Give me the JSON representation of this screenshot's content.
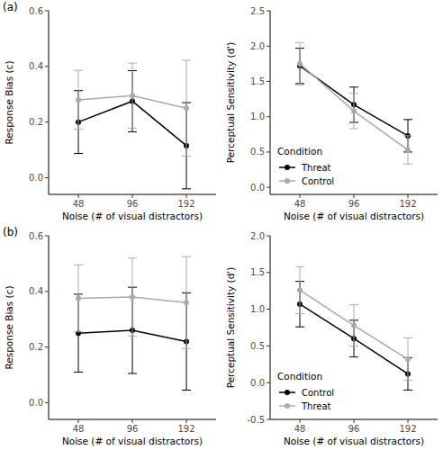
{
  "chart_data": [
    {
      "type": "line",
      "title": "(a)",
      "x_label": "Noise (# of visual distractors)",
      "y_label": "Response Bias (c)",
      "categories": [
        "48",
        "96",
        "192"
      ],
      "ylim": [
        -0.06,
        0.6
      ],
      "yticks": [
        {
          "value": 0,
          "label": "0.0"
        },
        0.2,
        0.4,
        0.6
      ],
      "series": [
        {
          "color": "#000000",
          "marker": "circle",
          "values": [
            0.2,
            0.275,
            0.115
          ],
          "errors": [
            0.113,
            0.11,
            0.155
          ]
        },
        {
          "color": "#aaaaaa",
          "marker": "circle",
          "values": [
            0.28,
            0.295,
            0.25
          ],
          "errors": [
            0.106,
            0.117,
            0.172
          ]
        }
      ]
    },
    {
      "type": "line",
      "x_label": "Noise (# of visual distractors)",
      "y_label": "Perceptual Sensitivity (d')",
      "categories": [
        "48",
        "96",
        "192"
      ],
      "ylim": [
        -0.1,
        2.5
      ],
      "yticks": [
        {
          "value": 0,
          "label": "0.0"
        },
        0.5,
        {
          "value": 1,
          "label": "1.0"
        },
        1.5,
        {
          "value": 2,
          "label": "2.0"
        },
        2.5
      ],
      "legend": "lower left",
      "legend_title": "Condition",
      "series": [
        {
          "name": "Threat",
          "color": "#000000",
          "marker": "circle",
          "values": [
            1.72,
            1.17,
            0.73
          ],
          "errors": [
            0.25,
            0.25,
            0.23
          ]
        },
        {
          "name": "Control",
          "color": "#aaaaaa",
          "marker": "circle",
          "values": [
            1.75,
            1.08,
            0.53
          ],
          "errors": [
            0.3,
            0.25,
            0.2
          ]
        }
      ]
    },
    {
      "type": "line",
      "title": "(b)",
      "x_label": "Noise (# of visual distractors)",
      "y_label": "Response Bias (c)",
      "categories": [
        "48",
        "96",
        "192"
      ],
      "ylim": [
        -0.06,
        0.6
      ],
      "yticks": [
        {
          "value": 0,
          "label": "0.0"
        },
        0.2,
        0.4,
        0.6
      ],
      "series": [
        {
          "color": "#000000",
          "marker": "circle",
          "values": [
            0.25,
            0.26,
            0.22
          ],
          "errors": [
            0.14,
            0.155,
            0.175
          ]
        },
        {
          "color": "#aaaaaa",
          "marker": "circle",
          "values": [
            0.375,
            0.38,
            0.36
          ],
          "errors": [
            0.12,
            0.14,
            0.165
          ]
        }
      ]
    },
    {
      "type": "line",
      "x_label": "Noise (# of visual distractors)",
      "y_label": "Perceptual Sensitivity (d')",
      "categories": [
        "48",
        "96",
        "192"
      ],
      "ylim": [
        -0.5,
        2.0
      ],
      "yticks": [
        -0.5,
        {
          "value": 0,
          "label": "0.0"
        },
        0.5,
        {
          "value": 1,
          "label": "1.0"
        },
        1.5,
        {
          "value": 2,
          "label": "2.0"
        }
      ],
      "legend": "lower left",
      "legend_title": "Condition",
      "series": [
        {
          "name": "Control",
          "color": "#000000",
          "marker": "circle",
          "values": [
            1.07,
            0.6,
            0.12
          ],
          "errors": [
            0.31,
            0.25,
            0.22
          ]
        },
        {
          "name": "Threat",
          "color": "#aaaaaa",
          "marker": "circle",
          "values": [
            1.26,
            0.78,
            0.32
          ],
          "errors": [
            0.32,
            0.28,
            0.29
          ]
        }
      ]
    }
  ]
}
